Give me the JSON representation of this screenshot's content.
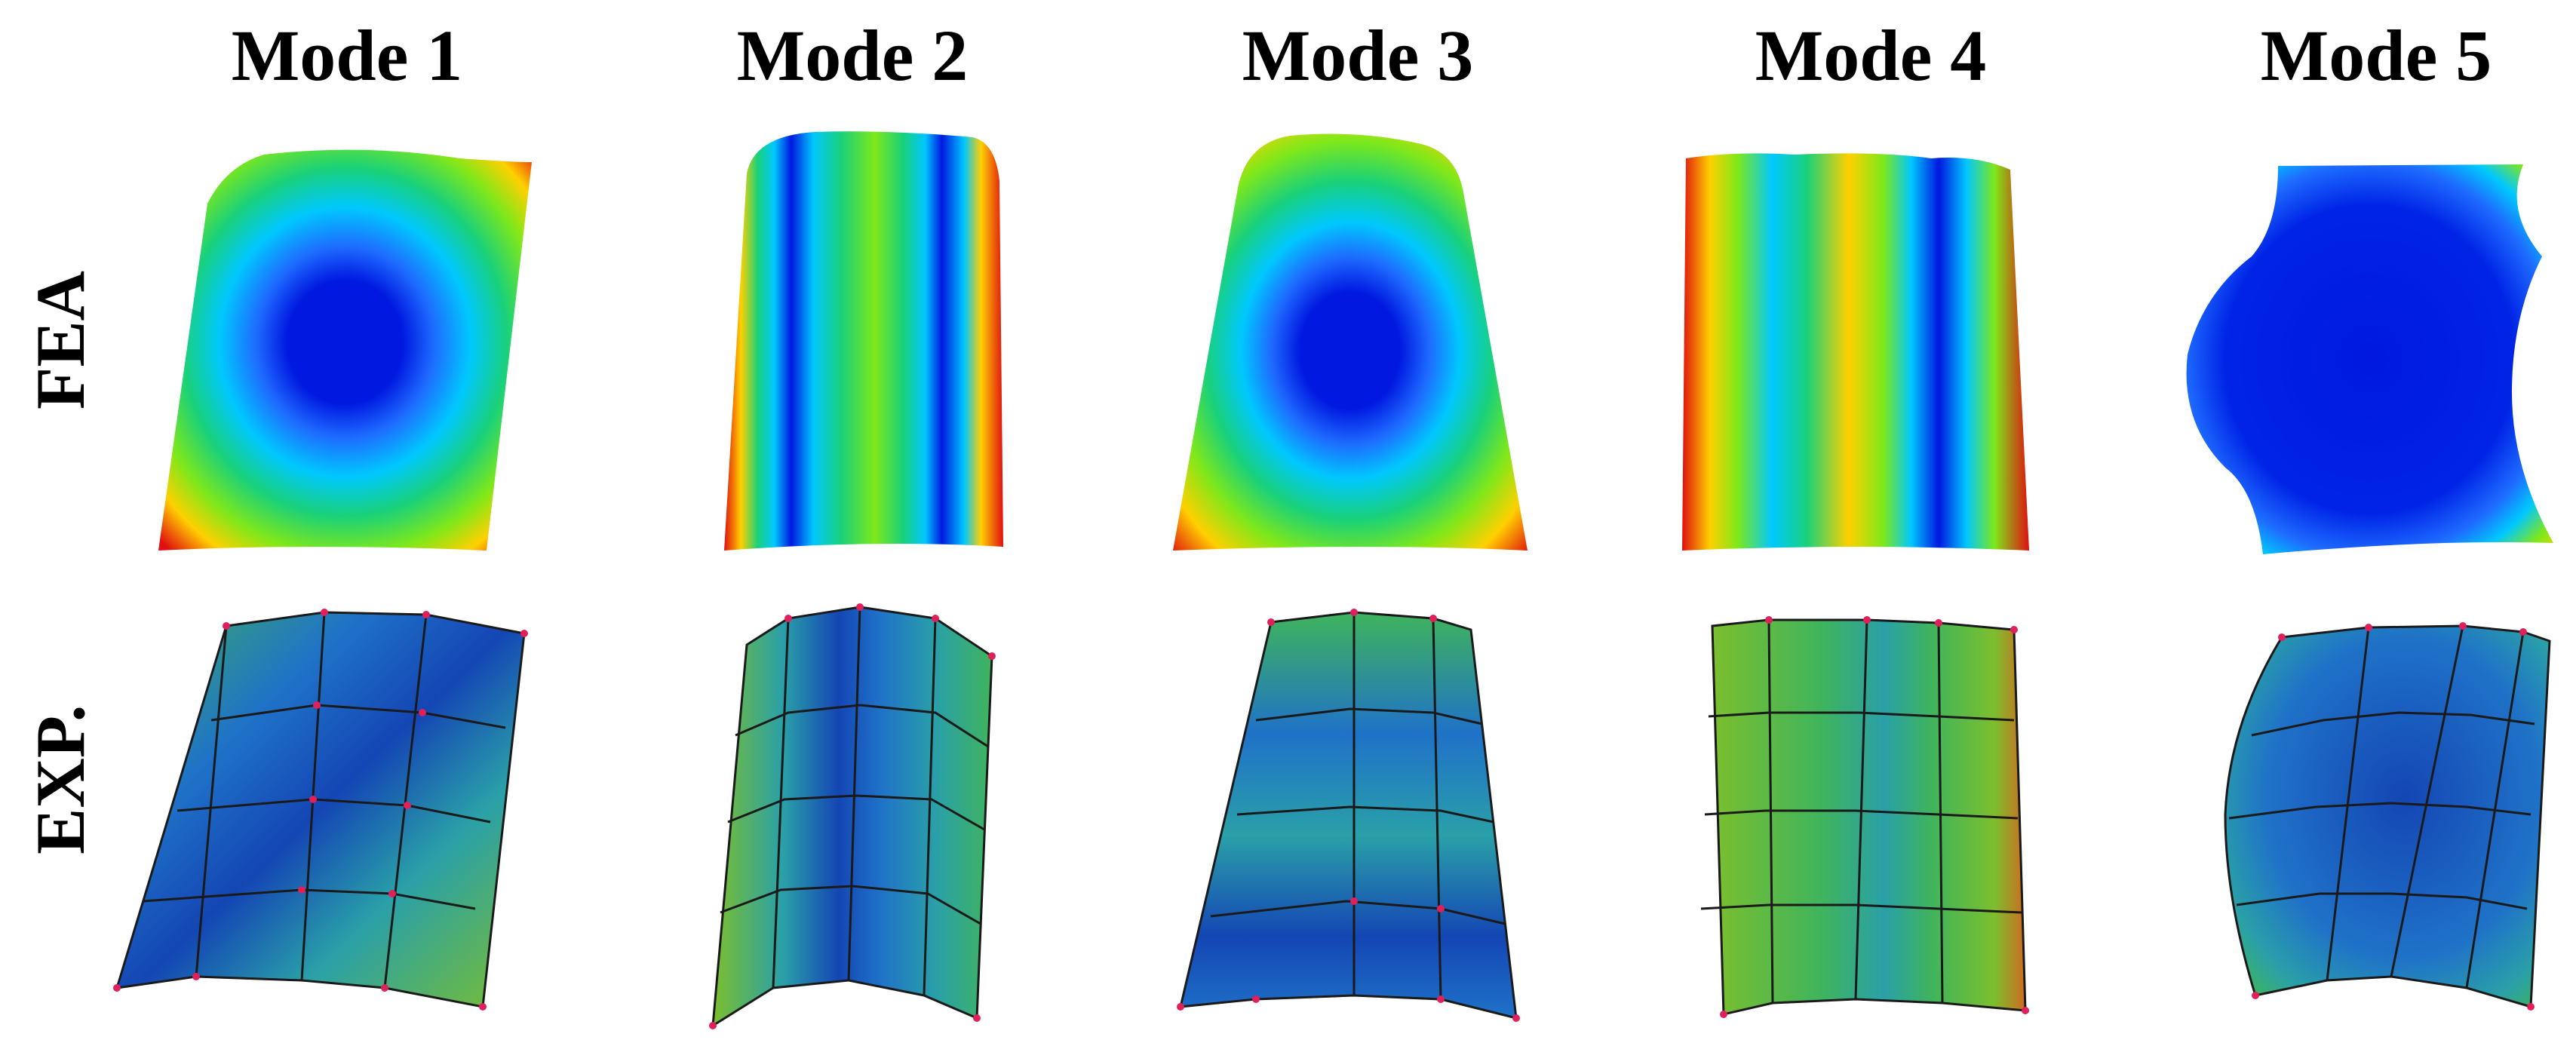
{
  "figure": {
    "column_titles": [
      "Mode 1",
      "Mode 2",
      "Mode 3",
      "Mode 4",
      "Mode 5"
    ],
    "row_labels": [
      "FEA",
      "EXP."
    ]
  },
  "colors": {
    "fea_scale": [
      "#0018e0",
      "#1e6bff",
      "#00c8ff",
      "#19d17a",
      "#7ee81a",
      "#ffd000",
      "#ff7a00",
      "#e01010"
    ],
    "exp_scale": [
      "#1446b4",
      "#1f72c8",
      "#2aa0a8",
      "#3fb45c",
      "#7bbf2e",
      "#d06a1e"
    ],
    "mesh_line": "#1a1a1a",
    "mesh_node": "#e0205a"
  }
}
